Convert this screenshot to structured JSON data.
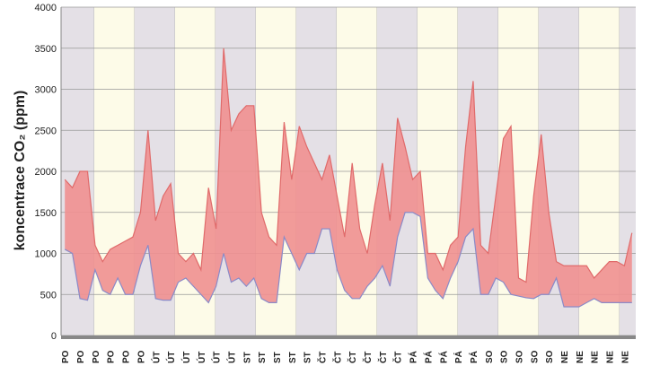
{
  "chart_data": {
    "type": "range_area",
    "y_label": "koncentrace CO₂ (ppm)",
    "categories": [
      "PO",
      null,
      "PO",
      null,
      "PO",
      null,
      "PO",
      null,
      "PO",
      null,
      "PO",
      null,
      "ÚT",
      null,
      "ÚT",
      null,
      "ÚT",
      null,
      "ÚT",
      null,
      "ÚT",
      null,
      "ÚT",
      null,
      "ST",
      null,
      "ST",
      null,
      "ST",
      null,
      "ST",
      null,
      "ST",
      null,
      "ČT",
      null,
      "ČT",
      null,
      "ČT",
      null,
      "ČT",
      null,
      "ČT",
      null,
      "ČT",
      null,
      "PÁ",
      null,
      "PÁ",
      null,
      "PÁ",
      null,
      "PÁ",
      null,
      "PÁ",
      null,
      "SO",
      null,
      "SO",
      null,
      "SO",
      null,
      "SO",
      null,
      "SO",
      null,
      "NE",
      null,
      "NE",
      null,
      "NE",
      null,
      "NE",
      null,
      "NE",
      null
    ],
    "series": [
      {
        "color": "#e06a6a",
        "values": [
          1900,
          1800,
          2000,
          2000,
          1100,
          900,
          1050,
          1100,
          1150,
          1200,
          1500,
          2500,
          1400,
          1700,
          1850,
          1000,
          900,
          1000,
          800,
          1800,
          1300,
          3500,
          2500,
          2700,
          2800,
          2800,
          1500,
          1200,
          1100,
          2600,
          1900,
          2550,
          2300,
          2100,
          1900,
          2200,
          1700,
          1200,
          2100,
          1300,
          1000,
          1600,
          2100,
          1400,
          2650,
          2300,
          1900,
          2000,
          1000,
          1000,
          800,
          1100,
          1200,
          2300,
          3100,
          1100,
          1000,
          1700,
          2400,
          2550,
          700,
          650,
          1700,
          2450,
          1500,
          900,
          850,
          850,
          850,
          850,
          700,
          800,
          900,
          900,
          850,
          1250
        ]
      },
      {
        "color": "#8a8ac8",
        "values": [
          1050,
          1000,
          450,
          430,
          800,
          550,
          500,
          700,
          500,
          500,
          850,
          1100,
          450,
          430,
          430,
          650,
          700,
          600,
          500,
          400,
          600,
          1000,
          650,
          700,
          600,
          700,
          450,
          400,
          400,
          1200,
          1000,
          800,
          1000,
          1000,
          1300,
          1300,
          800,
          550,
          450,
          450,
          600,
          700,
          850,
          600,
          1200,
          1500,
          1500,
          1450,
          700,
          550,
          450,
          700,
          900,
          1200,
          1300,
          500,
          500,
          700,
          650,
          500,
          480,
          460,
          450,
          500,
          500,
          700,
          350,
          350,
          350,
          400,
          450,
          400,
          400,
          400,
          400,
          400
        ]
      }
    ],
    "ylim": [
      0,
      4000
    ],
    "yticks": [
      0,
      500,
      1000,
      1500,
      2000,
      2500,
      3000,
      3500,
      4000
    ],
    "grid": true
  }
}
